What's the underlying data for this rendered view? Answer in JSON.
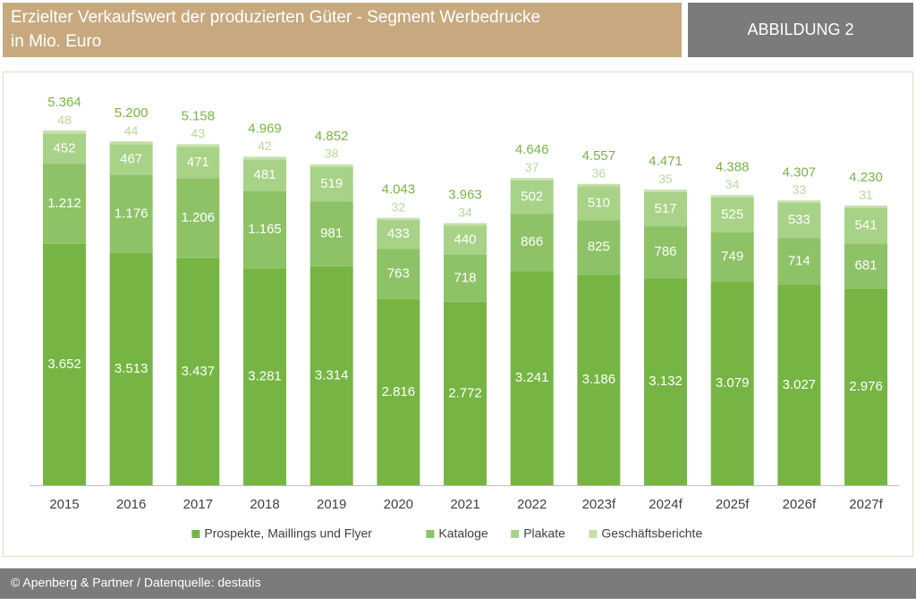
{
  "header": {
    "title": "Erzielter Verkaufswert der produzierten Güter - Segment Werbedrucke",
    "subtitle": "in Mio. Euro",
    "figure_label": "ABBILDUNG 2"
  },
  "footer": {
    "text": "© Apenberg & Partner / Datenquelle: destatis"
  },
  "chart_data": {
    "type": "stacked_bar",
    "categories": [
      "2015",
      "2016",
      "2017",
      "2018",
      "2019",
      "2020",
      "2021",
      "2022",
      "2023f",
      "2024f",
      "2025f",
      "2026f",
      "2027f"
    ],
    "series": [
      {
        "name": "Prospekte, Maillings und Flyer",
        "color": "#76b543",
        "values": [
          3652,
          3513,
          3437,
          3281,
          3314,
          2816,
          2772,
          3241,
          3186,
          3132,
          3079,
          3027,
          2976
        ],
        "value_labels": [
          "3.652",
          "3.513",
          "3.437",
          "3.281",
          "3.314",
          "2.816",
          "2.772",
          "3.241",
          "3.186",
          "3.132",
          "3.079",
          "3.027",
          "2.976"
        ]
      },
      {
        "name": "Kataloge",
        "color": "#8dc366",
        "values": [
          1212,
          1176,
          1206,
          1165,
          981,
          763,
          718,
          866,
          825,
          786,
          749,
          714,
          681
        ],
        "value_labels": [
          "1.212",
          "1.176",
          "1.206",
          "1.165",
          "981",
          "763",
          "718",
          "866",
          "825",
          "786",
          "749",
          "714",
          "681"
        ]
      },
      {
        "name": "Plakate",
        "color": "#a8d287",
        "values": [
          452,
          467,
          471,
          481,
          519,
          433,
          440,
          502,
          510,
          517,
          525,
          533,
          541
        ]
      },
      {
        "name": "Geschäftsberichte",
        "color": "#c4e1ab",
        "values": [
          48,
          44,
          43,
          42,
          38,
          32,
          34,
          37,
          36,
          35,
          34,
          33,
          31
        ]
      }
    ],
    "totals": {
      "values": [
        5364,
        5200,
        5158,
        4969,
        4852,
        4043,
        3963,
        4646,
        4557,
        4471,
        4388,
        4307,
        4230
      ],
      "value_labels": [
        "5.364",
        "5.200",
        "5.158",
        "4.969",
        "4.852",
        "4.043",
        "3.963",
        "4.646",
        "4.557",
        "4.471",
        "4.388",
        "4.307",
        "4.230"
      ]
    },
    "ylim": [
      0,
      6000
    ]
  }
}
